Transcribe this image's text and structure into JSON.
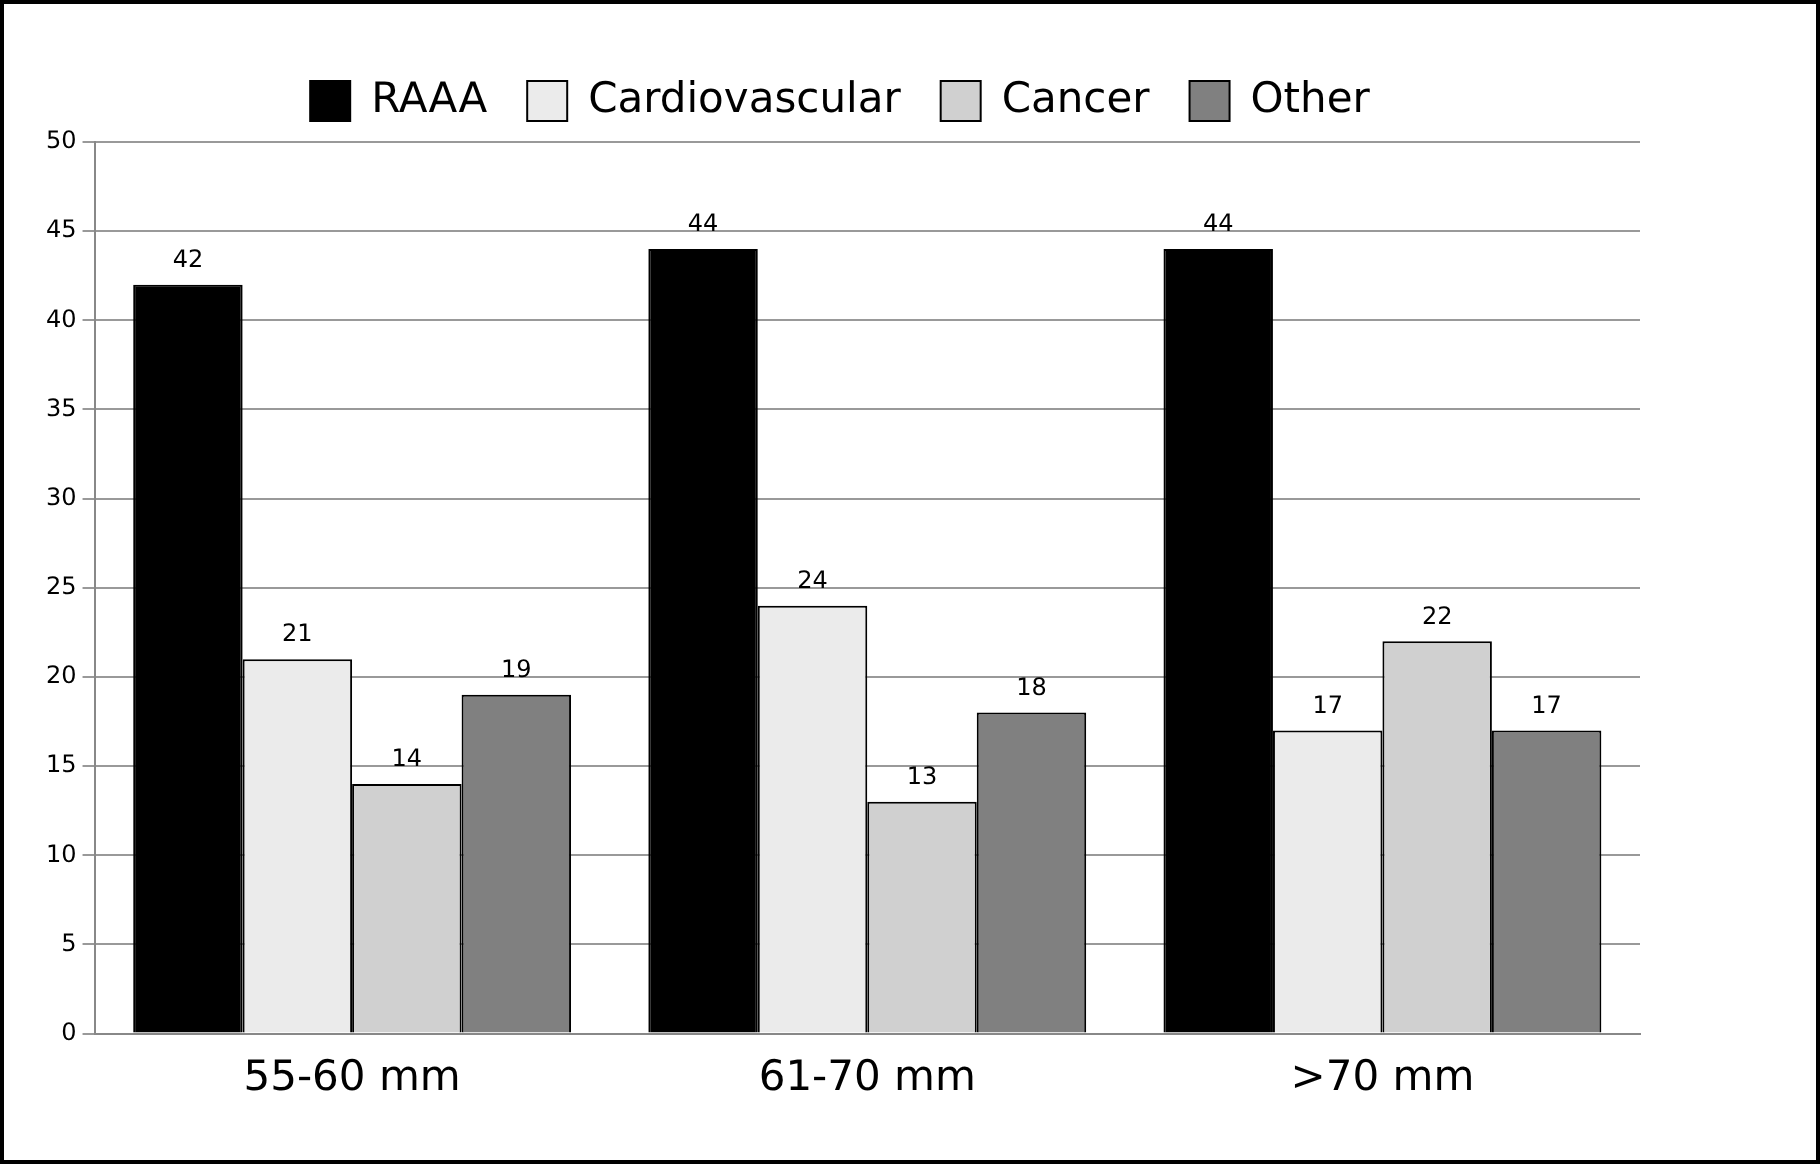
{
  "chart_data": {
    "type": "bar",
    "categories": [
      "55-60 mm",
      "61-70 mm",
      ">70 mm"
    ],
    "series": [
      {
        "name": "RAAA",
        "color": "#000000",
        "values": [
          42,
          44,
          44
        ]
      },
      {
        "name": "Cardiovascular",
        "color": "#ebebeb",
        "values": [
          21,
          24,
          17
        ]
      },
      {
        "name": "Cancer",
        "color": "#d0d0d0",
        "values": [
          14,
          13,
          22
        ]
      },
      {
        "name": "Other",
        "color": "#808080",
        "values": [
          19,
          18,
          17
        ]
      }
    ],
    "ylim": [
      0,
      50
    ],
    "yticks": [
      0,
      5,
      10,
      15,
      20,
      25,
      30,
      35,
      40,
      45,
      50
    ],
    "grid": "y",
    "legend": "top",
    "data_labels": true
  }
}
